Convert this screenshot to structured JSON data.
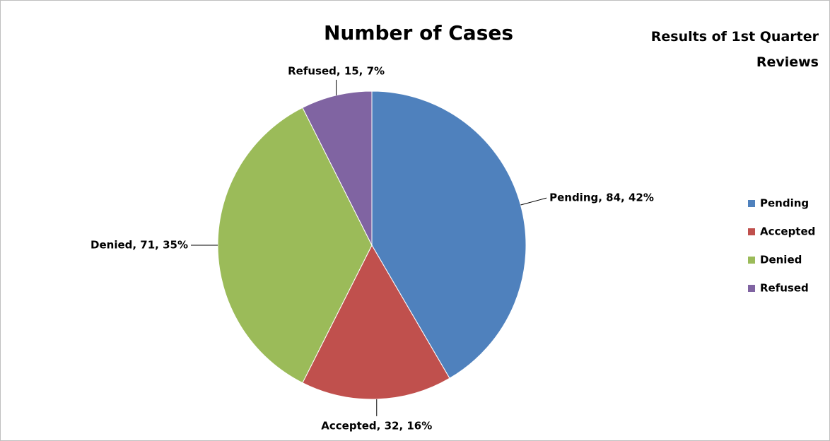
{
  "chart_data": {
    "type": "pie",
    "title": "Number of Cases",
    "annotation": "Results of 1st Quarter Reviews",
    "categories": [
      "Pending",
      "Accepted",
      "Denied",
      "Refused"
    ],
    "values": [
      84,
      32,
      71,
      15
    ],
    "value_labels": [
      "Pending, 84, 42%",
      "Accepted, 32, 16%",
      "Denied, 71, 35%",
      "Refused, 15, 7%"
    ],
    "colors": [
      "#4f81bd",
      "#c0504d",
      "#9bbb59",
      "#8064a2"
    ],
    "legend": "right"
  }
}
